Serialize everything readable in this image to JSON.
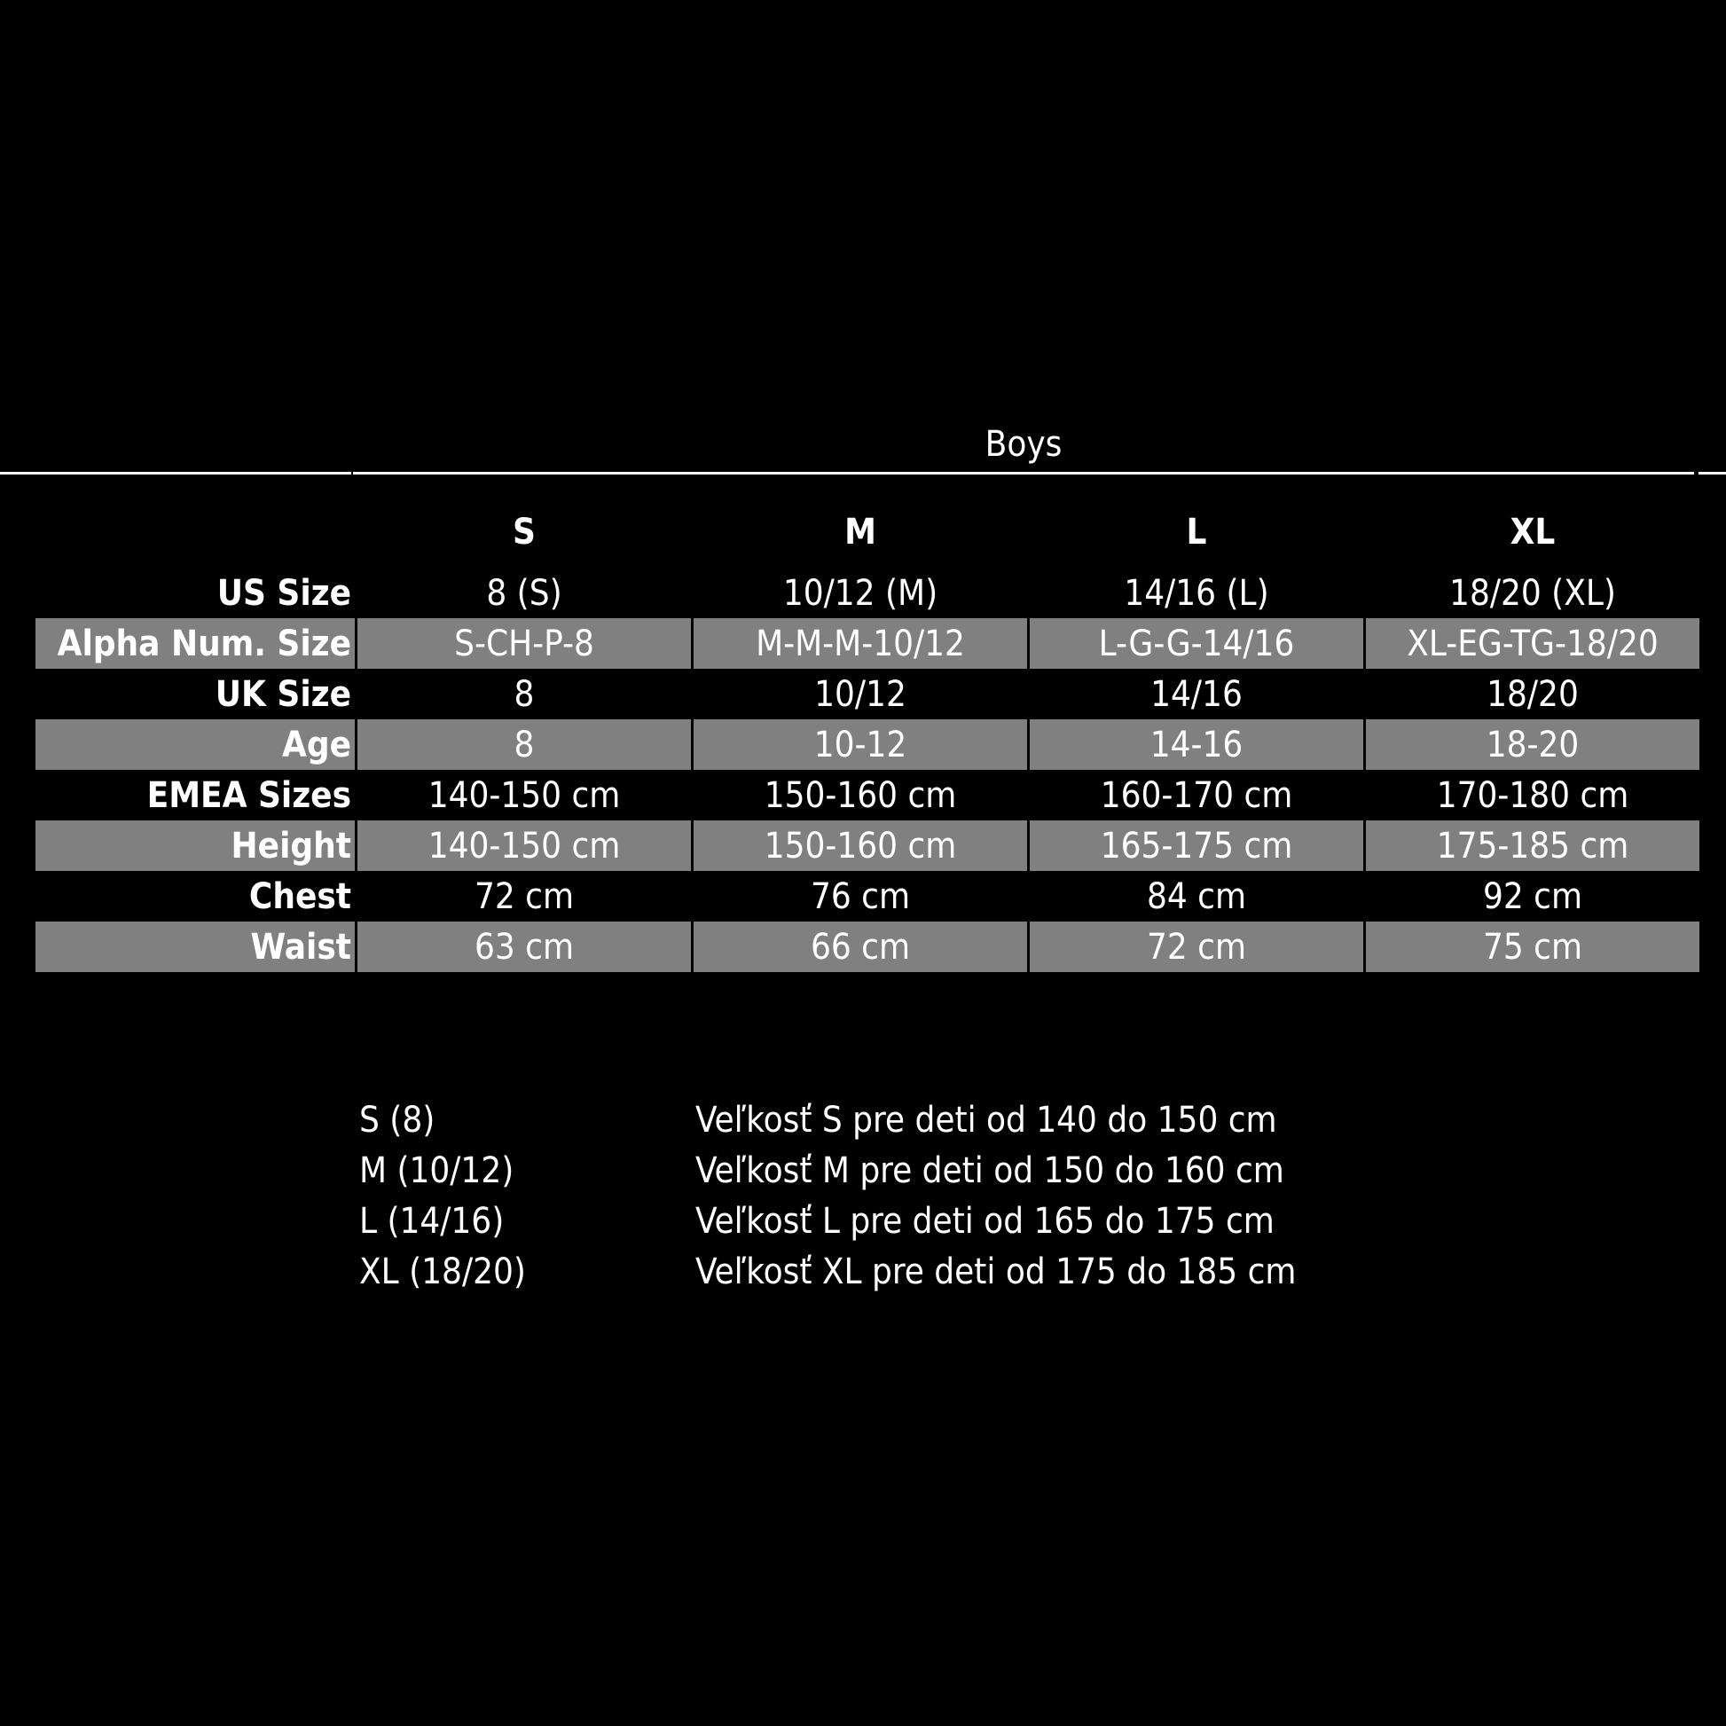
{
  "title": "Boys",
  "columns": [
    "S",
    "M",
    "L",
    "XL"
  ],
  "rows": [
    {
      "label": "US Size",
      "values": [
        "8 (S)",
        "10/12 (M)",
        "14/16 (L)",
        "18/20 (XL)"
      ],
      "shaded": false
    },
    {
      "label": "Alpha Num. Size",
      "values": [
        "S-CH-P-8",
        "M-M-M-10/12",
        "L-G-G-14/16",
        "XL-EG-TG-18/20"
      ],
      "shaded": true
    },
    {
      "label": "UK Size",
      "values": [
        "8",
        "10/12",
        "14/16",
        "18/20"
      ],
      "shaded": false
    },
    {
      "label": "Age",
      "values": [
        "8",
        "10-12",
        "14-16",
        "18-20"
      ],
      "shaded": true
    },
    {
      "label": "EMEA Sizes",
      "values": [
        "140-150 cm",
        "150-160 cm",
        "160-170 cm",
        "170-180 cm"
      ],
      "shaded": false
    },
    {
      "label": "Height",
      "values": [
        "140-150 cm",
        "150-160 cm",
        "165-175 cm",
        "175-185 cm"
      ],
      "shaded": true
    },
    {
      "label": "Chest",
      "values": [
        "72 cm",
        "76 cm",
        "84 cm",
        "92 cm"
      ],
      "shaded": false
    },
    {
      "label": "Waist",
      "values": [
        "63 cm",
        "66 cm",
        "72 cm",
        "75 cm"
      ],
      "shaded": true
    }
  ],
  "notes": [
    {
      "size": "S (8)",
      "text": "Veľkosť S pre deti od 140 do 150 cm"
    },
    {
      "size": "M (10/12)",
      "text": "Veľkosť M pre deti od 150 do 160 cm"
    },
    {
      "size": "L (14/16)",
      "text": "Veľkosť L pre deti od 165 do 175 cm"
    },
    {
      "size": "XL (18/20)",
      "text": "Veľkosť XL pre deti od 175 do 185 cm"
    }
  ],
  "colors": {
    "background": "#000000",
    "shaded_row": "#808080",
    "text": "#ffffff"
  }
}
